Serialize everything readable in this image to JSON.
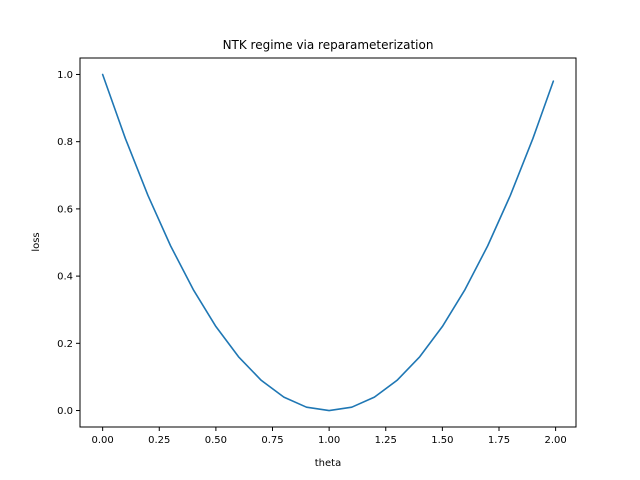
{
  "chart_data": {
    "type": "line",
    "title": "NTK regime via reparameterization",
    "xlabel": "theta",
    "ylabel": "loss",
    "xlim": [
      -0.1,
      2.09
    ],
    "ylim": [
      -0.049,
      1.049
    ],
    "xticks": [
      0.0,
      0.25,
      0.5,
      0.75,
      1.0,
      1.25,
      1.5,
      1.75,
      2.0
    ],
    "xtick_labels": [
      "0.00",
      "0.25",
      "0.50",
      "0.75",
      "1.00",
      "1.25",
      "1.50",
      "1.75",
      "2.00"
    ],
    "yticks": [
      0.0,
      0.2,
      0.4,
      0.6,
      0.8,
      1.0
    ],
    "ytick_labels": [
      "0.0",
      "0.2",
      "0.4",
      "0.6",
      "0.8",
      "1.0"
    ],
    "grid": false,
    "series": [
      {
        "color": "#1f77b4",
        "x": [
          0.0,
          0.1,
          0.2,
          0.3,
          0.4,
          0.5,
          0.6,
          0.7,
          0.8,
          0.9,
          1.0,
          1.1,
          1.2,
          1.3,
          1.4,
          1.5,
          1.6,
          1.7,
          1.8,
          1.9,
          1.99
        ],
        "y": [
          1.0,
          0.81,
          0.64,
          0.49,
          0.36,
          0.25,
          0.16,
          0.09,
          0.04,
          0.01,
          0.0,
          0.01,
          0.04,
          0.09,
          0.16,
          0.25,
          0.36,
          0.49,
          0.64,
          0.81,
          0.9801
        ]
      }
    ]
  }
}
